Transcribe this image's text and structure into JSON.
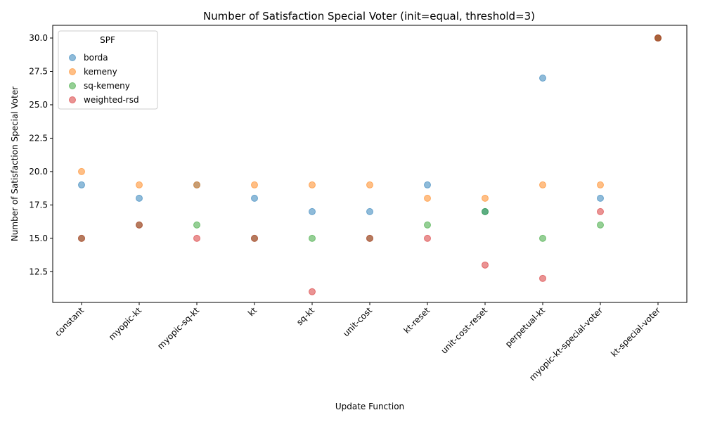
{
  "chart_data": {
    "type": "scatter",
    "title": "Number of Satisfaction Special Voter (init=equal, threshold=3)",
    "xlabel": "Update Function",
    "ylabel": "Number of Satisfaction Special Voter",
    "categories": [
      "constant",
      "myopic-kt",
      "myopic-sq-kt",
      "kt",
      "sq-kt",
      "unit-cost",
      "kt-reset",
      "unit-cost-reset",
      "perpetual-kt",
      "myopic-kt-special-voter",
      "kt-special-voter"
    ],
    "ylim": [
      10.2,
      30.95
    ],
    "yticks": [
      12.5,
      15.0,
      17.5,
      20.0,
      22.5,
      25.0,
      27.5,
      30.0
    ],
    "ytick_labels": [
      "12.5",
      "15.0",
      "17.5",
      "20.0",
      "22.5",
      "25.0",
      "27.5",
      "30.0"
    ],
    "grid": false,
    "legend": {
      "title": "SPF",
      "placement": "top-left"
    },
    "series": [
      {
        "name": "borda",
        "color": "#1f77b4",
        "values": [
          19,
          18,
          19,
          18,
          17,
          17,
          19,
          17,
          27,
          18,
          30
        ]
      },
      {
        "name": "kemeny",
        "color": "#ff7f0e",
        "values": [
          20,
          19,
          19,
          19,
          19,
          19,
          18,
          18,
          19,
          19,
          30
        ]
      },
      {
        "name": "sq-kemeny",
        "color": "#2ca02c",
        "values": [
          15,
          16,
          16,
          15,
          15,
          15,
          16,
          17,
          15,
          16,
          30
        ]
      },
      {
        "name": "weighted-rsd",
        "color": "#d62728",
        "values": [
          15,
          16,
          15,
          15,
          11,
          15,
          15,
          13,
          12,
          17,
          30
        ]
      }
    ]
  }
}
